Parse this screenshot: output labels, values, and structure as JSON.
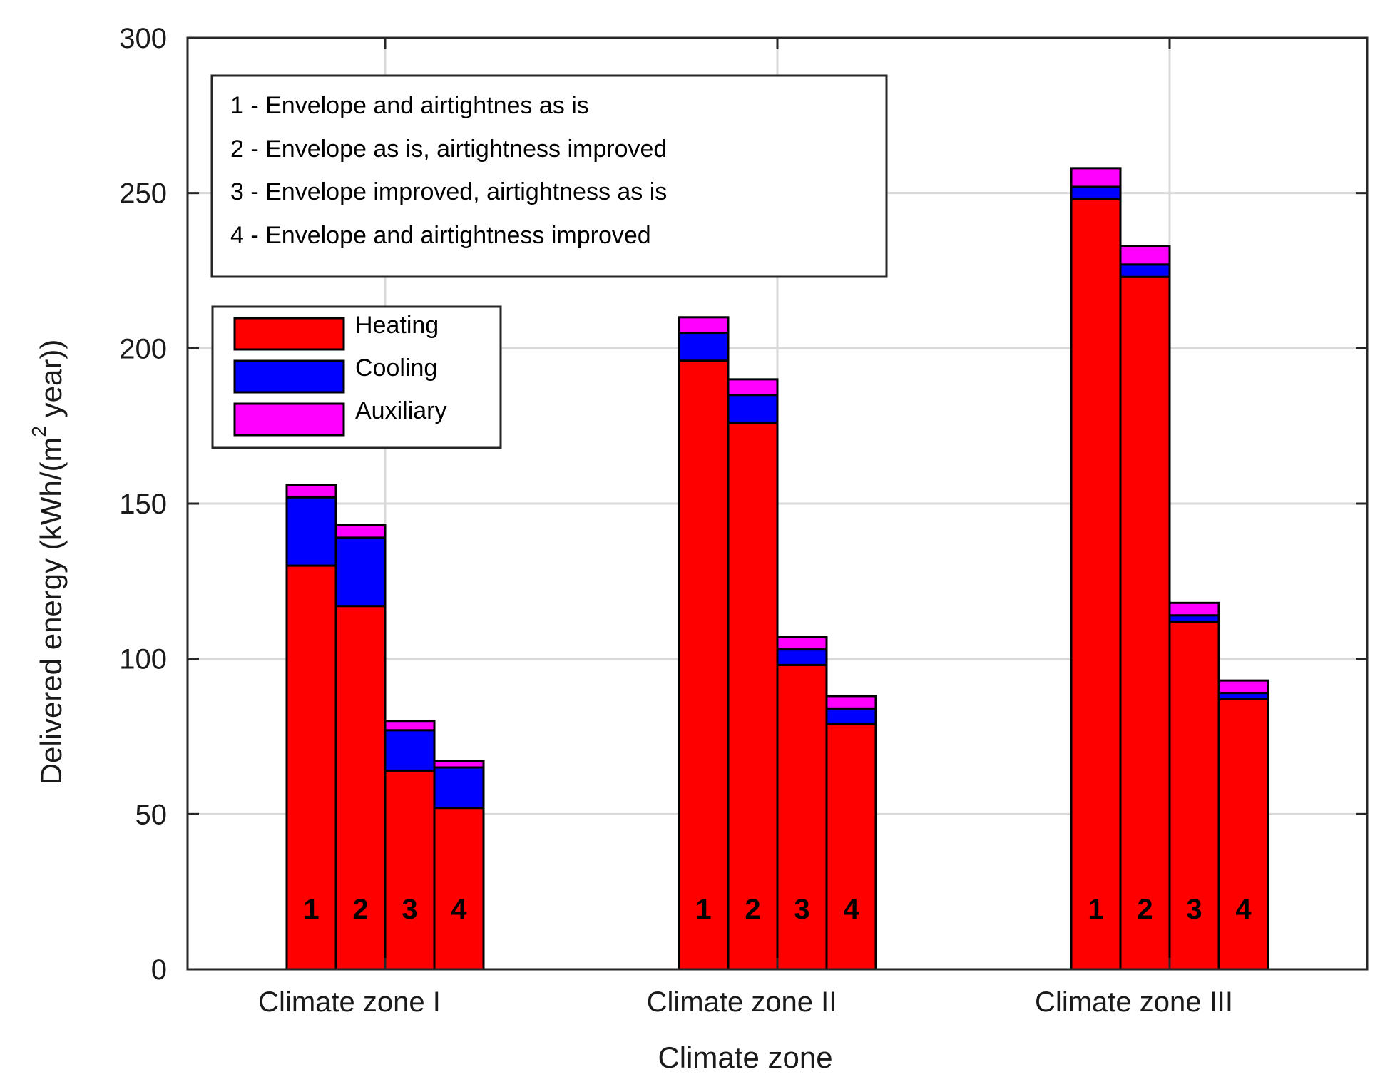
{
  "chart_data": {
    "type": "bar",
    "stacked": true,
    "title": "",
    "xlabel": "Climate zone",
    "ylabel": "Delivered energy (kWh/(m",
    "ylabel_superscript": "2",
    "ylabel_tail": " year))",
    "ylim": [
      0,
      300
    ],
    "yticks": [
      0,
      50,
      100,
      150,
      200,
      250,
      300
    ],
    "grid": true,
    "categories": [
      "Climate zone I",
      "Climate zone II",
      "Climate zone III"
    ],
    "bar_labels": [
      "1",
      "2",
      "3",
      "4"
    ],
    "series": [
      {
        "name": "Heating",
        "color": "#ff0000",
        "values": [
          [
            130,
            117,
            64,
            52
          ],
          [
            196,
            176,
            98,
            79
          ],
          [
            248,
            223,
            112,
            87
          ]
        ]
      },
      {
        "name": "Cooling",
        "color": "#0000ff",
        "values": [
          [
            22,
            22,
            13,
            13
          ],
          [
            9,
            9,
            5,
            5
          ],
          [
            4,
            4,
            2,
            2
          ]
        ]
      },
      {
        "name": "Auxiliary",
        "color": "#ff00ff",
        "values": [
          [
            4,
            4,
            3,
            2
          ],
          [
            5,
            5,
            4,
            4
          ],
          [
            6,
            6,
            4,
            4
          ]
        ]
      }
    ],
    "scenario_legend": [
      "1 - Envelope and airtightnes as is",
      "2 - Envelope as is, airtightness improved",
      "3 - Envelope improved, airtightness as is",
      "4 - Envelope and airtightness improved"
    ],
    "legend_position": "top-left"
  }
}
